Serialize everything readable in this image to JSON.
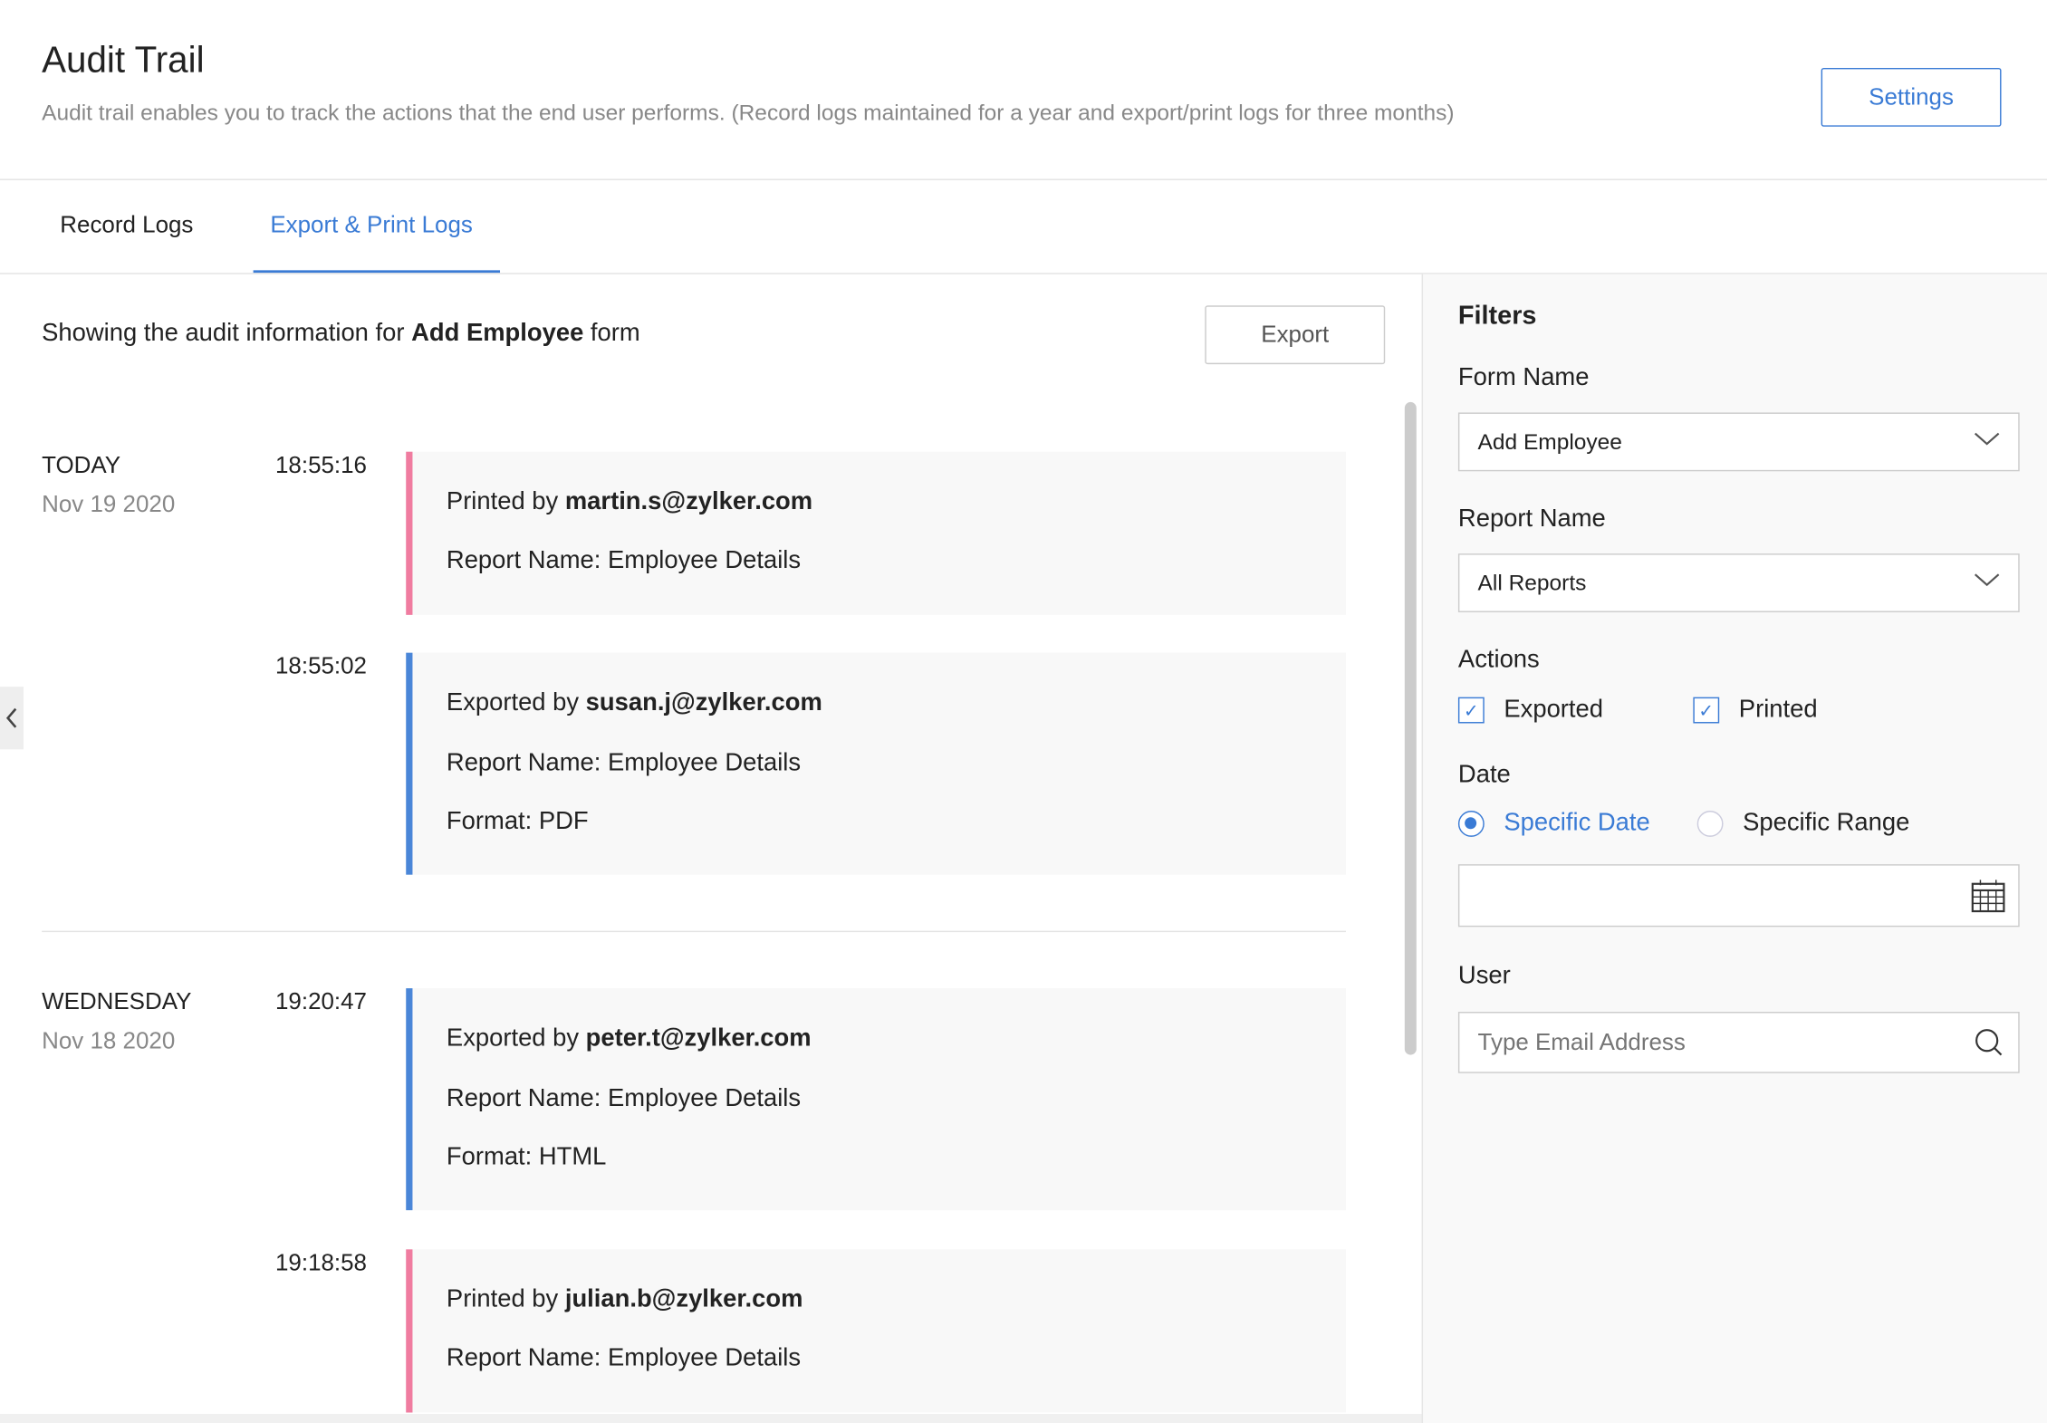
{
  "header": {
    "title": "Audit Trail",
    "subtitle": "Audit trail enables you to track the actions that the end user performs. (Record logs maintained for a year and export/print logs for three months)",
    "settings_label": "Settings"
  },
  "tabs": [
    {
      "label": "Record Logs",
      "active": false
    },
    {
      "label": "Export & Print Logs",
      "active": true
    }
  ],
  "main": {
    "showing_prefix": "Showing the audit information for ",
    "form_name": "Add Employee",
    "showing_suffix": " form",
    "export_label": "Export",
    "groups": [
      {
        "day": "TODAY",
        "date": "Nov 19 2020",
        "entries": [
          {
            "time": "18:55:16",
            "type": "printed",
            "action": "Printed by ",
            "user": "martin.s@zylker.com",
            "report": "Report Name: Employee Details"
          },
          {
            "time": "18:55:02",
            "type": "exported",
            "action": "Exported by ",
            "user": "susan.j@zylker.com",
            "report": "Report Name: Employee Details",
            "format": "Format: PDF"
          }
        ]
      },
      {
        "day": "WEDNESDAY",
        "date": "Nov 18 2020",
        "entries": [
          {
            "time": "19:20:47",
            "type": "exported",
            "action": "Exported by ",
            "user": "peter.t@zylker.com",
            "report": "Report Name: Employee Details",
            "format": "Format: HTML"
          },
          {
            "time": "19:18:58",
            "type": "printed",
            "action": "Printed by ",
            "user": "julian.b@zylker.com",
            "report": "Report Name: Employee Details"
          }
        ]
      }
    ]
  },
  "filters": {
    "title": "Filters",
    "form_name_label": "Form Name",
    "form_name_value": "Add Employee",
    "report_name_label": "Report Name",
    "report_name_value": "All Reports",
    "actions_label": "Actions",
    "actions": [
      {
        "label": "Exported",
        "checked": true
      },
      {
        "label": "Printed",
        "checked": true
      }
    ],
    "date_label": "Date",
    "date_options": [
      {
        "label": "Specific Date",
        "selected": true
      },
      {
        "label": "Specific Range",
        "selected": false
      }
    ],
    "date_value": "",
    "user_label": "User",
    "user_placeholder": "Type Email Address"
  },
  "colors": {
    "accent": "#3a7bd5",
    "printed": "#f07ca0",
    "exported": "#4a86d8"
  }
}
